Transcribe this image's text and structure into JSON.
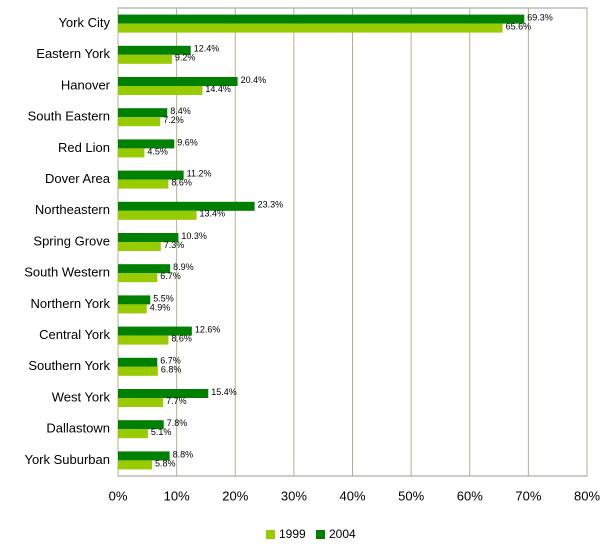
{
  "chart_data": {
    "type": "hbar",
    "categories": [
      "York City",
      "Eastern York",
      "Hanover",
      "South Eastern",
      "Red Lion",
      "Dover Area",
      "Northeastern",
      "Spring Grove",
      "South Western",
      "Northern York",
      "Central York",
      "Southern York",
      "West York",
      "Dallastown",
      "York Suburban"
    ],
    "series": [
      {
        "name": "1999",
        "color": "#99cc00",
        "values": [
          65.6,
          9.2,
          14.4,
          7.2,
          4.5,
          8.6,
          13.4,
          7.3,
          6.7,
          4.9,
          8.6,
          6.8,
          7.7,
          5.1,
          5.8
        ],
        "value_labels": [
          "65.6%",
          "9.2%",
          "14.4%",
          "7.2%",
          "4.5%",
          "8.6%",
          "13.4%",
          "7.3%",
          "6.7%",
          "4.9%",
          "8.6%",
          "6.8%",
          "7.7%",
          "5.1%",
          "5.8%"
        ]
      },
      {
        "name": "2004",
        "color": "#008000",
        "values": [
          69.3,
          12.4,
          20.4,
          8.4,
          9.6,
          11.2,
          23.3,
          10.3,
          8.9,
          5.5,
          12.6,
          6.7,
          15.4,
          7.8,
          8.8
        ],
        "value_labels": [
          "69.3%",
          "12.4%",
          "20.4%",
          "8.4%",
          "9.6%",
          "11.2%",
          "23.3%",
          "10.3%",
          "8.9%",
          "5.5%",
          "12.6%",
          "6.7%",
          "15.4%",
          "7.8%",
          "8.8%"
        ]
      }
    ],
    "xlim": [
      0,
      80
    ],
    "xticks": [
      {
        "value": 0,
        "label": "0%"
      },
      {
        "value": 10,
        "label": "10%"
      },
      {
        "value": 20,
        "label": "20%"
      },
      {
        "value": 30,
        "label": "30%"
      },
      {
        "value": 40,
        "label": "40%"
      },
      {
        "value": 50,
        "label": "50%"
      },
      {
        "value": 60,
        "label": "60%"
      },
      {
        "value": 70,
        "label": "70%"
      },
      {
        "value": 80,
        "label": "80%"
      }
    ],
    "grid": true,
    "legend": "bottom"
  }
}
